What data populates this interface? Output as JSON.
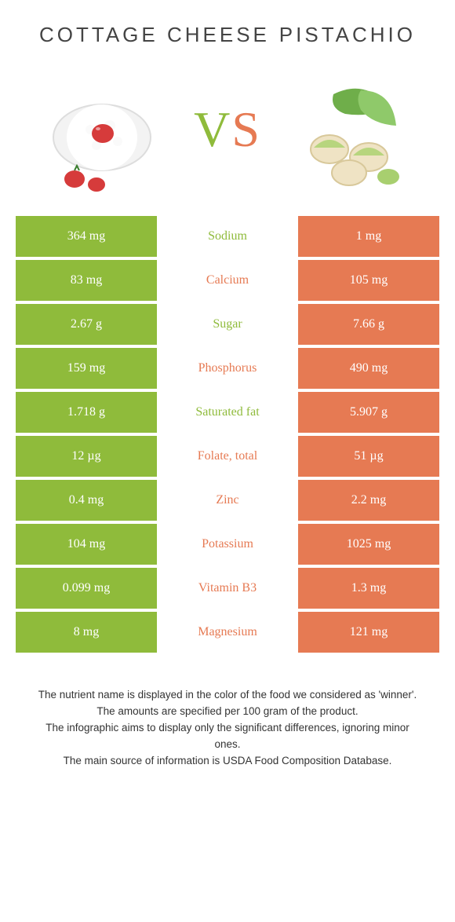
{
  "colors": {
    "left_bg": "#8fbb3b",
    "right_bg": "#e67a53",
    "mid_left_text": "#8fbb3b",
    "mid_right_text": "#e67a53",
    "vs_v": "#8fbb3b",
    "vs_s": "#e67a53"
  },
  "foods": {
    "left_title": "COTTAGE CHEESE",
    "right_title": "PISTACHIO"
  },
  "vs": "VS",
  "rows": [
    {
      "left": "364 mg",
      "name": "Sodium",
      "right": "1 mg",
      "winner": "left"
    },
    {
      "left": "83 mg",
      "name": "Calcium",
      "right": "105 mg",
      "winner": "right"
    },
    {
      "left": "2.67 g",
      "name": "Sugar",
      "right": "7.66 g",
      "winner": "left"
    },
    {
      "left": "159 mg",
      "name": "Phosphorus",
      "right": "490 mg",
      "winner": "right"
    },
    {
      "left": "1.718 g",
      "name": "Saturated fat",
      "right": "5.907 g",
      "winner": "left"
    },
    {
      "left": "12 µg",
      "name": "Folate, total",
      "right": "51 µg",
      "winner": "right"
    },
    {
      "left": "0.4 mg",
      "name": "Zinc",
      "right": "2.2 mg",
      "winner": "right"
    },
    {
      "left": "104 mg",
      "name": "Potassium",
      "right": "1025 mg",
      "winner": "right"
    },
    {
      "left": "0.099 mg",
      "name": "Vitamin B3",
      "right": "1.3 mg",
      "winner": "right"
    },
    {
      "left": "8 mg",
      "name": "Magnesium",
      "right": "121 mg",
      "winner": "right"
    }
  ],
  "footnotes": [
    "The nutrient name is displayed in the color of the food we considered as 'winner'.",
    "The amounts are specified per 100 gram of the product.",
    "The infographic aims to display only the significant differences, ignoring minor ones.",
    "The main source of information is USDA Food Composition Database."
  ]
}
